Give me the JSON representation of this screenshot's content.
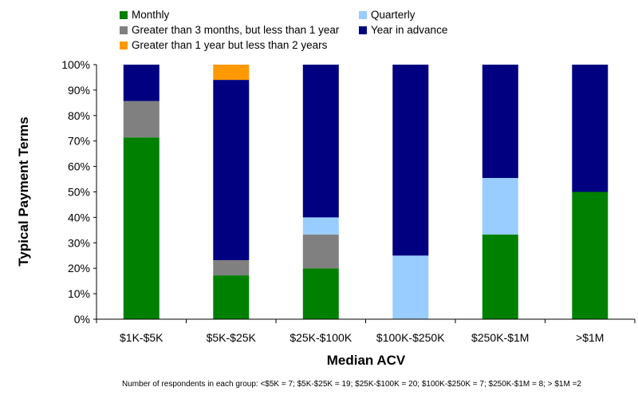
{
  "chart_data": {
    "type": "bar",
    "stacked": true,
    "categories": [
      "$1K-$5K",
      "$5K-$25K",
      "$25K-$100K",
      "$100K-$250K",
      "$250K-$1M",
      ">$1M"
    ],
    "series": [
      {
        "name": "Monthly",
        "color": "#008000",
        "values": [
          71.4,
          17.2,
          20.0,
          0,
          33.3,
          50.0
        ]
      },
      {
        "name": "Quarterly",
        "color": "#99ccff",
        "values": [
          0,
          0,
          6.7,
          25.0,
          22.2,
          0
        ]
      },
      {
        "name": "Greater than 3 months, but less than 1 year",
        "color": "#808080",
        "values": [
          14.3,
          6.0,
          13.3,
          0,
          0,
          0
        ]
      },
      {
        "name": "Year in advance",
        "color": "#000080",
        "values": [
          14.3,
          70.8,
          60.0,
          75.0,
          44.5,
          50.0
        ]
      },
      {
        "name": "Greater than 1 year but less than 2 years",
        "color": "#ff9900",
        "values": [
          0,
          6.0,
          0,
          0,
          0,
          0
        ]
      }
    ],
    "stack_order": [
      "Monthly",
      "Greater than 3 months, but less than 1 year",
      "Quarterly",
      "Year in advance",
      "Greater than 1 year but less than 2 years"
    ],
    "legend_order": [
      "Monthly",
      "Quarterly",
      "Greater than 3 months, but less than 1 year",
      "Year in advance",
      "Greater than 1 year but less than 2 years"
    ],
    "yticks": [
      "0%",
      "10%",
      "20%",
      "30%",
      "40%",
      "50%",
      "60%",
      "70%",
      "80%",
      "90%",
      "100%"
    ],
    "ylim": [
      0,
      100
    ],
    "xlabel": "Median ACV",
    "ylabel": "Typical Payment Terms",
    "legend_position": "top",
    "grid": false
  },
  "footnote": "Number of respondents in each group: <$5K = 7; $5K-$25K = 19; $25K-$100K = 20; $100K-$250K = 7; $250K-$1M = 8; > $1M =2"
}
